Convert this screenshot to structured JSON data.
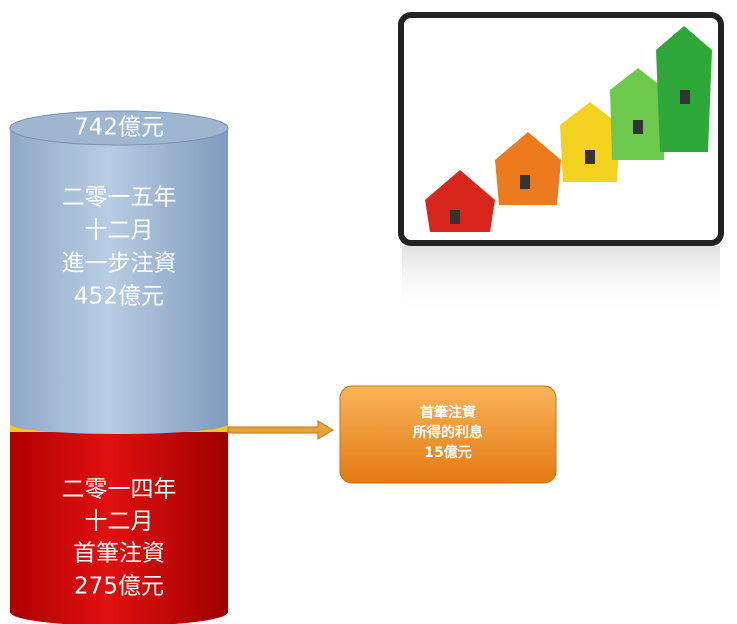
{
  "cylinder": {
    "total": "742億元",
    "top_segment": {
      "lines": [
        "二零一五年",
        "十二月",
        "進一步注資",
        "452億元"
      ]
    },
    "bottom_segment": {
      "lines": [
        "二零一四年",
        "十二月",
        "首筆注資",
        "275億元"
      ]
    }
  },
  "callout": {
    "lines": [
      "首筆注資",
      "所得的利息",
      "15億元"
    ]
  }
}
